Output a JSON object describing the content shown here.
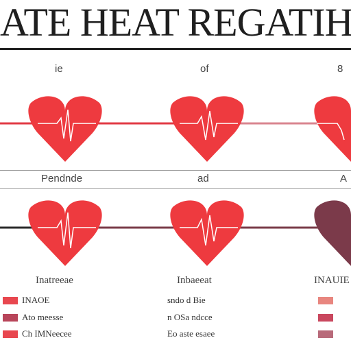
{
  "title": "ATE HEAT REGATIHE RA",
  "row1_labels": [
    "ie",
    "of",
    "8"
  ],
  "row2_labels": [
    "Pendnde",
    "ad",
    "A"
  ],
  "section_labels": [
    "Inatreeae",
    "Inbaeeat",
    "INAUIE"
  ],
  "legend": {
    "col1": [
      "INAOE",
      "Ato meesse",
      "Ch IMNeecee"
    ],
    "col2": [
      "sndo d Bie",
      "n OSa ndcce",
      "Eo aste esaee"
    ],
    "col3": [
      "",
      "",
      ""
    ]
  },
  "colors": {
    "heart_red": "#ee3a3f",
    "heart_dark": "#e02d33",
    "heart_maroon": "#7b3a4a",
    "line_red": "#e23a45",
    "line_pink": "#d9858f",
    "line_dark": "#2a2a2a",
    "swatch_red": "#e8474f",
    "swatch_maroon": "#b8455a",
    "swatch_pink": "#e8867f"
  },
  "icons": [
    "heart-icon",
    "ecg-line"
  ]
}
